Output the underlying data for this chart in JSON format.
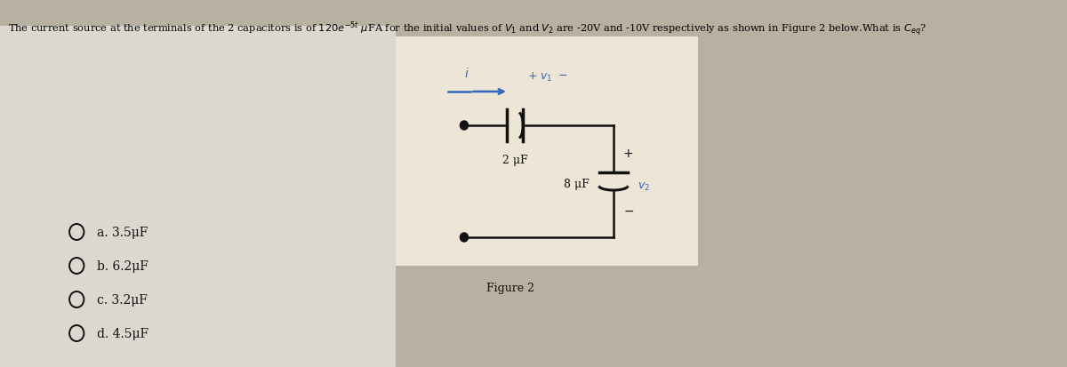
{
  "page_bg": "#b8b0a0",
  "circuit_bg": "#ede5d5",
  "white_panel_bg": "#e8e4dc",
  "title_text": "The current source at the terminals of the 2 capacitors is of $120e^{-5t}$ $\\mu$FA for the initial values of $V_1$ and $V_2$ are -20V and -10V respectively as shown in Figure 2 below.What is $C_{eq}$?",
  "figure_label": "Figure 2",
  "options": [
    "a. 3.5μF",
    "b. 6.2μF",
    "c. 3.2μF",
    "d. 4.5μF"
  ],
  "cap1_label": "2 μF",
  "cap2_label": "8 μF",
  "blue_color": "#3366bb",
  "black_color": "#111111"
}
